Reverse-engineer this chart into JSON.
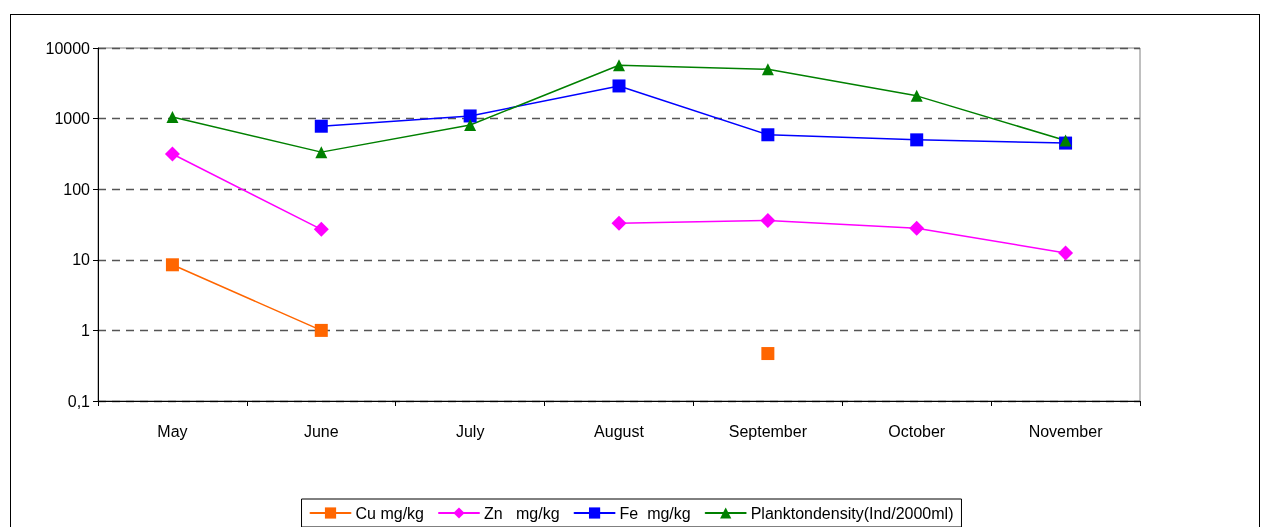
{
  "chart_data": {
    "type": "line",
    "categories": [
      "May",
      "June",
      "July",
      "August",
      "September",
      "October",
      "November"
    ],
    "series": [
      {
        "name": "Cu mg/kg",
        "color": "#ff6600",
        "marker": "square",
        "values": [
          8.5,
          1,
          null,
          null,
          0.47,
          null,
          null
        ]
      },
      {
        "name": "Zn   mg/kg",
        "color": "#ff00ff",
        "marker": "diamond",
        "values": [
          315,
          27,
          null,
          33,
          36,
          28,
          12.5
        ]
      },
      {
        "name": "Fe  mg/kg",
        "color": "#0000ff",
        "marker": "square",
        "values": [
          null,
          780,
          1090,
          2900,
          590,
          500,
          450
        ]
      },
      {
        "name": "Planktondensity(Ind/2000ml)",
        "color": "#008000",
        "marker": "triangle",
        "values": [
          1050,
          335,
          810,
          5700,
          5000,
          2100,
          490
        ]
      }
    ],
    "ylim": [
      0.1,
      10000
    ],
    "yticks": [
      {
        "value": 0.1,
        "label": "0,1"
      },
      1,
      10,
      100,
      1000,
      10000
    ],
    "log": true,
    "grid": "y",
    "legend": "bottom",
    "line_style": "solid"
  }
}
